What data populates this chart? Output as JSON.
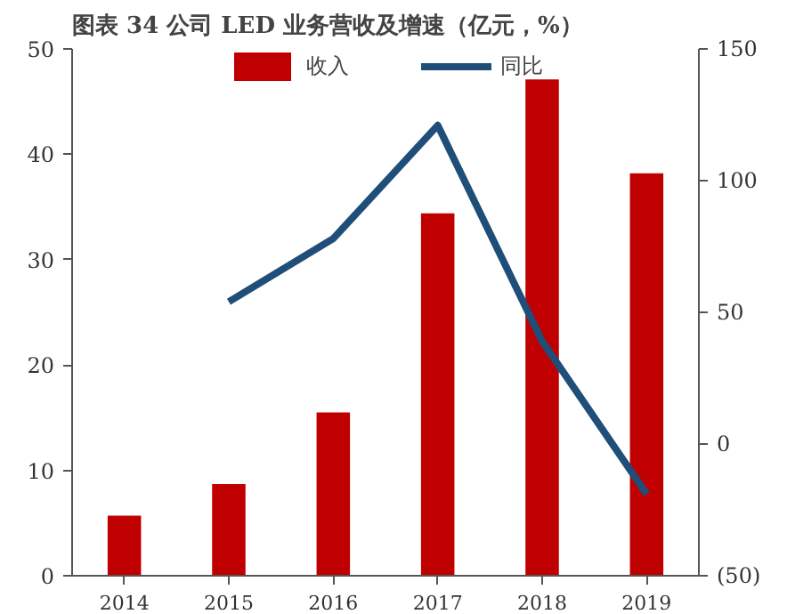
{
  "chart_data": {
    "type": "bar",
    "title": "图表 34   公司 LED 业务营收及增速（亿元，%）",
    "categories": [
      "2014",
      "2015",
      "2016",
      "2017",
      "2018",
      "2019"
    ],
    "series": [
      {
        "name": "收入",
        "color": "#c00000",
        "values": [
          5.7,
          8.7,
          15.5,
          34.4,
          47.1,
          38.2
        ]
      },
      {
        "name": "同比",
        "type": "line",
        "axis": "y2",
        "color": "#1f4e79",
        "values": [
          null,
          54,
          78,
          121,
          39,
          -19
        ]
      }
    ],
    "ylim": [
      0,
      50
    ],
    "yticks": [
      0,
      10,
      20,
      30,
      40,
      50
    ],
    "y2lim": [
      -50,
      150
    ],
    "y2ticks": [
      {
        "value": -50,
        "label": "(50)"
      },
      0,
      50,
      100,
      150
    ],
    "legend": "top",
    "grid": false
  }
}
